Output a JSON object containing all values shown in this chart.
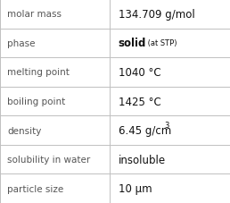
{
  "rows": [
    {
      "label": "molar mass",
      "value": "134.709 g/mol",
      "type": "plain"
    },
    {
      "label": "phase",
      "value": "solid",
      "type": "phase",
      "sub": " (at STP)"
    },
    {
      "label": "melting point",
      "value": "1040 °C",
      "type": "plain"
    },
    {
      "label": "boiling point",
      "value": "1425 °C",
      "type": "plain"
    },
    {
      "label": "density",
      "value": "6.45 g/cm",
      "type": "sup",
      "sup": "3"
    },
    {
      "label": "solubility in water",
      "value": "insoluble",
      "type": "plain"
    },
    {
      "label": "particle size",
      "value": "10 μm",
      "type": "plain"
    }
  ],
  "bg_color": "#ffffff",
  "border_color": "#c0c0c0",
  "label_color": "#555555",
  "value_color": "#111111",
  "label_fontsize": 7.5,
  "value_fontsize": 8.5,
  "sub_fontsize": 6.0,
  "sup_fontsize": 6.0,
  "col_split": 0.475
}
